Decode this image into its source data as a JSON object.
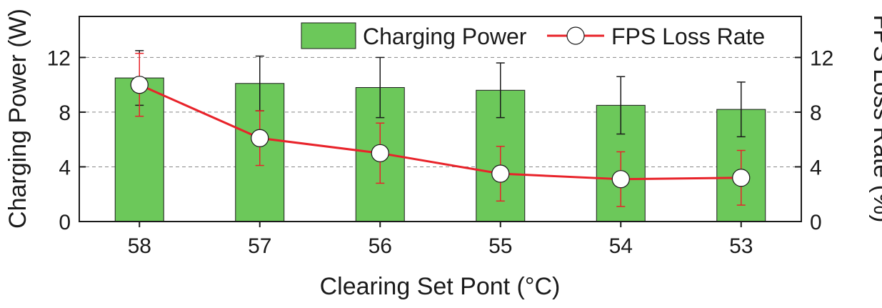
{
  "chart_data": {
    "type": "bar",
    "xlabel": "Clearing Set Pont (°C)",
    "ylabel": "Charging Power (W)",
    "y2label": "FPS Loss Rate (%)",
    "ylim": [
      0,
      15
    ],
    "y2lim": [
      0,
      15
    ],
    "yticks": [
      0,
      4,
      8,
      12
    ],
    "y2ticks": [
      0,
      4,
      8,
      12
    ],
    "grid": "horizontal dashed at major ticks",
    "legend_position": "top-right",
    "categories": [
      "58",
      "57",
      "56",
      "55",
      "54",
      "53"
    ],
    "series": [
      {
        "name": "Charging Power",
        "kind": "bar",
        "axis": "left",
        "color": "#6cc85a",
        "values": [
          10.5,
          10.1,
          9.8,
          9.6,
          8.5,
          8.2
        ],
        "error": [
          2.0,
          2.0,
          2.2,
          2.0,
          2.1,
          2.0
        ]
      },
      {
        "name": "FPS Loss Rate",
        "kind": "line",
        "axis": "right",
        "color": "#e8232a",
        "values": [
          10.0,
          6.1,
          5.0,
          3.5,
          3.1,
          3.2
        ],
        "error": [
          2.3,
          2.0,
          2.2,
          2.0,
          2.0,
          2.0
        ]
      }
    ]
  }
}
